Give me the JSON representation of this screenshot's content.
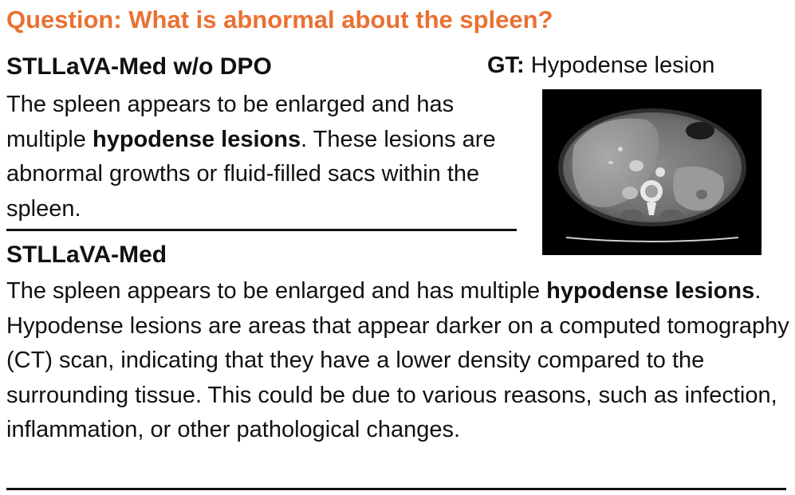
{
  "question": "Question: What is abnormal about the spleen?",
  "ground_truth": {
    "label": "GT:",
    "answer": "Hypodense lesion"
  },
  "responses": [
    {
      "model": "STLLaVA-Med w/o DPO",
      "text_before": "The spleen appears to be enlarged and has multiple ",
      "highlight": "hypodense lesions",
      "text_after": ". These lesions are abnormal growths or fluid-filled sacs within the spleen."
    },
    {
      "model": "STLLaVA-Med",
      "text_before": "The spleen appears to be enlarged and has multiple ",
      "highlight": "hypodense lesions",
      "text_after": ". Hypodense lesions are areas that appear darker on a computed tomography (CT) scan, indicating that they have a lower density compared to the surrounding tissue. This could be due to various reasons, such as infection, inflammation, or other pathological changes."
    }
  ],
  "colors": {
    "question": "#e97132",
    "text": "#111111"
  }
}
